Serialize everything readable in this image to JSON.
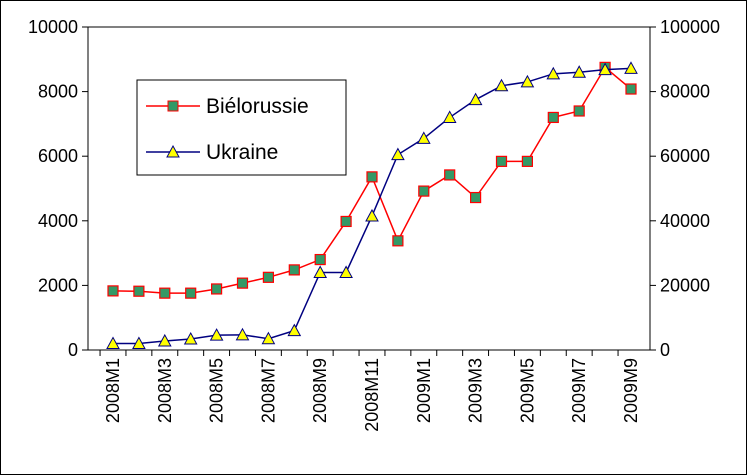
{
  "chart_data": {
    "type": "line",
    "categories": [
      "2008M1",
      null,
      "2008M3",
      null,
      "2008M5",
      null,
      "2008M7",
      null,
      "2008M9",
      null,
      "2008M11",
      null,
      "2009M1",
      null,
      "2009M3",
      null,
      "2009M5",
      null,
      "2009M7",
      null,
      "2009M9"
    ],
    "series": [
      {
        "name": "Biélorussie",
        "color": "#ff0000",
        "marker_color": "#339966",
        "values": [
          1830,
          1820,
          1760,
          1760,
          1890,
          2070,
          2250,
          2480,
          2800,
          3980,
          5360,
          3380,
          4920,
          5420,
          4720,
          5840,
          5840,
          7200,
          7400,
          8750,
          8080
        ]
      },
      {
        "name": "Ukraine",
        "color": "#000080",
        "marker_color": "#ffff00",
        "axis": "y2",
        "values": [
          2000,
          2000,
          2800,
          3400,
          4600,
          4700,
          3500,
          6000,
          24000,
          24000,
          41500,
          60500,
          65500,
          72000,
          77500,
          81800,
          83000,
          85500,
          86000,
          86800,
          87200
        ]
      }
    ],
    "ylim": [
      0,
      10000
    ],
    "yticks": [
      0,
      2000,
      4000,
      6000,
      8000,
      10000
    ],
    "y2lim": [
      0,
      100000
    ],
    "y2ticks": [
      0,
      20000,
      40000,
      60000,
      80000,
      100000
    ],
    "grid": false,
    "legend": "upper left"
  }
}
